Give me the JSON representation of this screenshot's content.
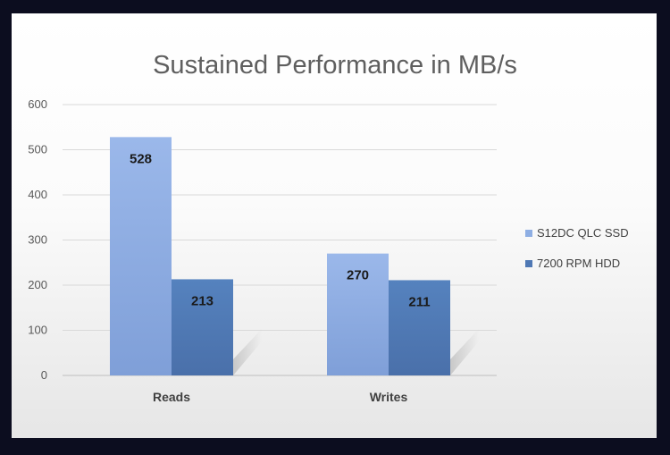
{
  "chart_data": {
    "type": "bar",
    "title": "Sustained Performance in MB/s",
    "categories": [
      "Reads",
      "Writes"
    ],
    "series": [
      {
        "name": "S12DC QLC SSD",
        "values": [
          528,
          270
        ],
        "color": "#8eaee3"
      },
      {
        "name": "7200 RPM HDD",
        "values": [
          213,
          211
        ],
        "color": "#4f78b4"
      }
    ],
    "ylim": [
      0,
      600
    ],
    "yticks": [
      "0",
      "100",
      "200",
      "300",
      "400",
      "500",
      "600"
    ],
    "grid": true,
    "legend_position": "right"
  }
}
